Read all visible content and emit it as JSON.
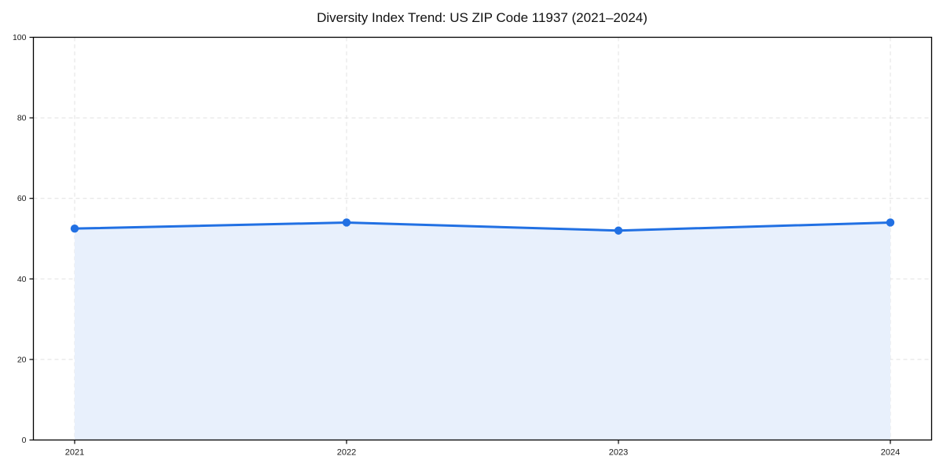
{
  "chart_data": {
    "type": "area",
    "title": "Diversity Index Trend: US ZIP Code 11937 (2021–2024)",
    "categories": [
      "2021",
      "2022",
      "2023",
      "2024"
    ],
    "series": [
      {
        "name": "Diversity Index",
        "values": [
          52.5,
          54,
          52,
          54
        ]
      }
    ],
    "xlabel": "",
    "ylabel": "",
    "ylim": [
      0,
      100
    ],
    "yticks": [
      0,
      20,
      40,
      60,
      80,
      100
    ],
    "grid": "dashed-both-axes",
    "legend": "none",
    "marker": "circle",
    "colors": {
      "line": "#2170e3",
      "marker": "#2170e3",
      "fill": "#e8f0fc",
      "grid": "#e1e1e1",
      "axis": "#000000",
      "tick_text": "#1a1a1a",
      "background": "#ffffff"
    }
  }
}
